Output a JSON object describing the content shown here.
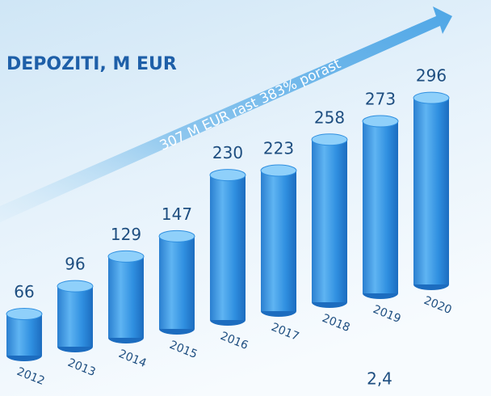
{
  "chart_data": {
    "type": "bar",
    "title": "DEPOZITI, M EUR",
    "annotation": "307 M EUR rast 383% porast",
    "footnote": "2,4",
    "categories": [
      "2012",
      "2013",
      "2014",
      "2015",
      "2016",
      "2017",
      "2018",
      "2019",
      "2020"
    ],
    "values": [
      66,
      96,
      129,
      147,
      230,
      223,
      258,
      273,
      296
    ],
    "color": "#2f8fe0"
  }
}
